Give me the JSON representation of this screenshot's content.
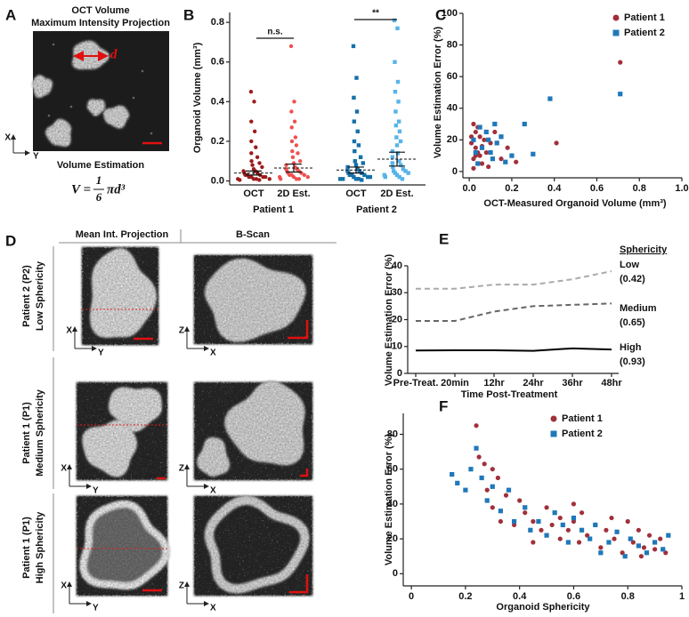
{
  "panel_a": {
    "panel": "A",
    "title": "OCT Volume",
    "subtitle": "Maximum Intensity Projection",
    "dimension": "d",
    "axes": {
      "x": "X",
      "y": "Y"
    },
    "estimation": "Volume Estimation",
    "formula": {
      "lhs": "V =",
      "numerator": "1",
      "denominator": "6",
      "rhs": "πd³"
    }
  },
  "panel_d": {
    "panel": "D",
    "columns": [
      "Mean Int. Projection",
      "B-Scan"
    ],
    "rows": [
      {
        "patient": "Patient 2 (P2)",
        "sphericity": "Low Sphericity"
      },
      {
        "patient": "Patient 1 (P1)",
        "sphericity": "Medium Sphericity"
      },
      {
        "patient": "Patient 1 (P1)",
        "sphericity": "High Sphericity"
      }
    ],
    "axes": {
      "x": "X",
      "y": "Y",
      "z": "Z"
    }
  },
  "chart_data": [
    {
      "type": "strip",
      "panel": "B",
      "categories": [
        "OCT",
        "2D Est.",
        "OCT",
        "2D Est."
      ],
      "groups": [
        "Patient 1",
        "Patient 2"
      ],
      "ylabel": "Organoid Volume (mm³)",
      "ylim": [
        -0.02,
        0.85
      ],
      "yticks": [
        {
          "value": 0,
          "label": "0.0"
        },
        0.2,
        0.4,
        0.6,
        0.8
      ],
      "annotations": [
        "n.s.",
        "**"
      ],
      "series": [
        {
          "color": "#9e1b1b",
          "marker": "circle",
          "mean": 0.04,
          "error": 0.01,
          "values": [
            0.45,
            0.4,
            0.3,
            0.25,
            0.2,
            0.17,
            0.14,
            0.12,
            0.1,
            0.09,
            0.08,
            0.07,
            0.06,
            0.05,
            0.05,
            0.04,
            0.04,
            0.03,
            0.03,
            0.03,
            0.02,
            0.02,
            0.02,
            0.02,
            0.01,
            0.01,
            0.01,
            0.01,
            0.005,
            0.005
          ]
        },
        {
          "color": "#f05050",
          "marker": "circle",
          "mean": 0.065,
          "error": 0.02,
          "values": [
            0.68,
            0.4,
            0.35,
            0.3,
            0.27,
            0.22,
            0.2,
            0.18,
            0.15,
            0.14,
            0.12,
            0.1,
            0.09,
            0.08,
            0.07,
            0.06,
            0.06,
            0.05,
            0.05,
            0.04,
            0.04,
            0.03,
            0.03,
            0.03,
            0.02,
            0.02,
            0.02,
            0.01,
            0.01,
            0.01
          ]
        },
        {
          "color": "#1670a8",
          "marker": "square",
          "mean": 0.055,
          "error": 0.015,
          "values": [
            0.68,
            0.52,
            0.42,
            0.35,
            0.3,
            0.25,
            0.2,
            0.18,
            0.15,
            0.12,
            0.1,
            0.09,
            0.08,
            0.07,
            0.06,
            0.05,
            0.05,
            0.04,
            0.04,
            0.03,
            0.03,
            0.03,
            0.02,
            0.02,
            0.02,
            0.01,
            0.01,
            0.01,
            0.01,
            0.005
          ]
        },
        {
          "color": "#56b4e9",
          "marker": "square",
          "mean": 0.11,
          "error": 0.035,
          "values": [
            0.81,
            0.77,
            0.6,
            0.5,
            0.45,
            0.4,
            0.35,
            0.3,
            0.28,
            0.25,
            0.22,
            0.2,
            0.18,
            0.15,
            0.14,
            0.12,
            0.1,
            0.09,
            0.08,
            0.07,
            0.06,
            0.05,
            0.05,
            0.04,
            0.04,
            0.03,
            0.03,
            0.02,
            0.02,
            0.01
          ]
        }
      ]
    },
    {
      "type": "scatter",
      "panel": "C",
      "xlabel": "OCT-Measured Organoid Volume (mm³)",
      "ylabel": "Volume Estimation Error (%)",
      "xlim": [
        -0.03,
        1.0
      ],
      "ylim": [
        -4,
        100
      ],
      "xticks": [
        {
          "value": 0,
          "label": "0.0"
        },
        0.2,
        0.4,
        0.6,
        0.8,
        {
          "value": 1,
          "label": "1.0"
        }
      ],
      "yticks": [
        0,
        20,
        40,
        60,
        80,
        100
      ],
      "series": [
        {
          "name": "Patient 1",
          "color": "#a0303a",
          "marker": "circle",
          "x": [
            0.02,
            0.03,
            0.01,
            0.04,
            0.05,
            0.02,
            0.03,
            0.06,
            0.07,
            0.08,
            0.1,
            0.12,
            0.04,
            0.02,
            0.05,
            0.15,
            0.18,
            0.22,
            0.41,
            0.71,
            0.09,
            0.01,
            0.03,
            0.06
          ],
          "values": [
            30,
            25,
            18,
            12,
            22,
            8,
            15,
            5,
            20,
            12,
            18,
            25,
            28,
            2,
            10,
            8,
            15,
            6,
            18,
            69,
            3,
            22,
            10,
            16
          ]
        },
        {
          "name": "Patient 2",
          "color": "#1f78b9",
          "marker": "square",
          "x": [
            0.02,
            0.05,
            0.08,
            0.1,
            0.12,
            0.15,
            0.2,
            0.26,
            0.3,
            0.38,
            0.71,
            0.04,
            0.06,
            0.13,
            0.17,
            0.03,
            0.11,
            0.09
          ],
          "values": [
            20,
            28,
            25,
            12,
            30,
            22,
            10,
            30,
            11,
            46,
            49,
            5,
            15,
            18,
            6,
            12,
            8,
            20
          ]
        }
      ]
    },
    {
      "type": "line",
      "panel": "E",
      "xlabel": "Time Post-Treatment",
      "ylabel": "Volume Estimation Error (%)",
      "categories": [
        "Pre-Treat.",
        "20min",
        "12hr",
        "24hr",
        "36hr",
        "48hr"
      ],
      "ylim": [
        0,
        40
      ],
      "yticks": [
        0,
        10,
        20,
        30,
        40
      ],
      "legend_title": "Sphericity",
      "series": [
        {
          "name": "Low",
          "sphericity": "(0.42)",
          "color": "#aaaaaa",
          "style": "dashed",
          "values": [
            31.5,
            31.5,
            33,
            33,
            35,
            38
          ]
        },
        {
          "name": "Medium",
          "sphericity": "(0.65)",
          "color": "#666666",
          "style": "dashed",
          "values": [
            19.5,
            19.5,
            23,
            25,
            25.5,
            26
          ]
        },
        {
          "name": "High",
          "sphericity": "(0.93)",
          "color": "#000000",
          "style": "solid",
          "values": [
            8.5,
            8.6,
            8.6,
            8.4,
            9.3,
            8.9
          ]
        }
      ]
    },
    {
      "type": "scatter",
      "panel": "F",
      "xlabel": "Organoid Sphericity",
      "ylabel": "Volume Estimation Error (%)",
      "xlim": [
        -0.03,
        1.0
      ],
      "ylim": [
        -7,
        92
      ],
      "xticks": [
        0,
        0.2,
        0.4,
        0.6,
        0.8,
        1
      ],
      "yticks": [
        0,
        20,
        40,
        60,
        80
      ],
      "series": [
        {
          "name": "Patient 1",
          "color": "#a0303a",
          "marker": "circle",
          "x": [
            0.24,
            0.25,
            0.27,
            0.3,
            0.32,
            0.28,
            0.35,
            0.3,
            0.33,
            0.38,
            0.4,
            0.42,
            0.45,
            0.48,
            0.5,
            0.52,
            0.55,
            0.55,
            0.58,
            0.6,
            0.62,
            0.63,
            0.65,
            0.68,
            0.7,
            0.72,
            0.74,
            0.75,
            0.78,
            0.8,
            0.82,
            0.84,
            0.85,
            0.86,
            0.88,
            0.9,
            0.92,
            0.94,
            0.6,
            0.45
          ],
          "values": [
            85,
            67,
            63,
            60,
            55,
            48,
            45,
            38,
            30,
            28,
            42,
            35,
            30,
            25,
            38,
            28,
            20,
            32,
            25,
            30,
            18,
            35,
            22,
            28,
            15,
            25,
            32,
            20,
            12,
            30,
            18,
            25,
            10,
            15,
            22,
            14,
            20,
            12,
            40,
            18
          ]
        },
        {
          "name": "Patient 2",
          "color": "#1f78b9",
          "marker": "square",
          "x": [
            0.15,
            0.17,
            0.2,
            0.22,
            0.24,
            0.26,
            0.28,
            0.3,
            0.33,
            0.36,
            0.38,
            0.42,
            0.44,
            0.47,
            0.5,
            0.53,
            0.56,
            0.58,
            0.6,
            0.63,
            0.66,
            0.68,
            0.7,
            0.73,
            0.76,
            0.79,
            0.81,
            0.84,
            0.87,
            0.9,
            0.93,
            0.95
          ],
          "values": [
            57,
            52,
            48,
            60,
            72,
            55,
            42,
            50,
            36,
            48,
            30,
            38,
            25,
            30,
            22,
            35,
            28,
            18,
            32,
            25,
            20,
            28,
            12,
            18,
            24,
            10,
            20,
            16,
            12,
            18,
            14,
            22
          ]
        }
      ]
    }
  ]
}
